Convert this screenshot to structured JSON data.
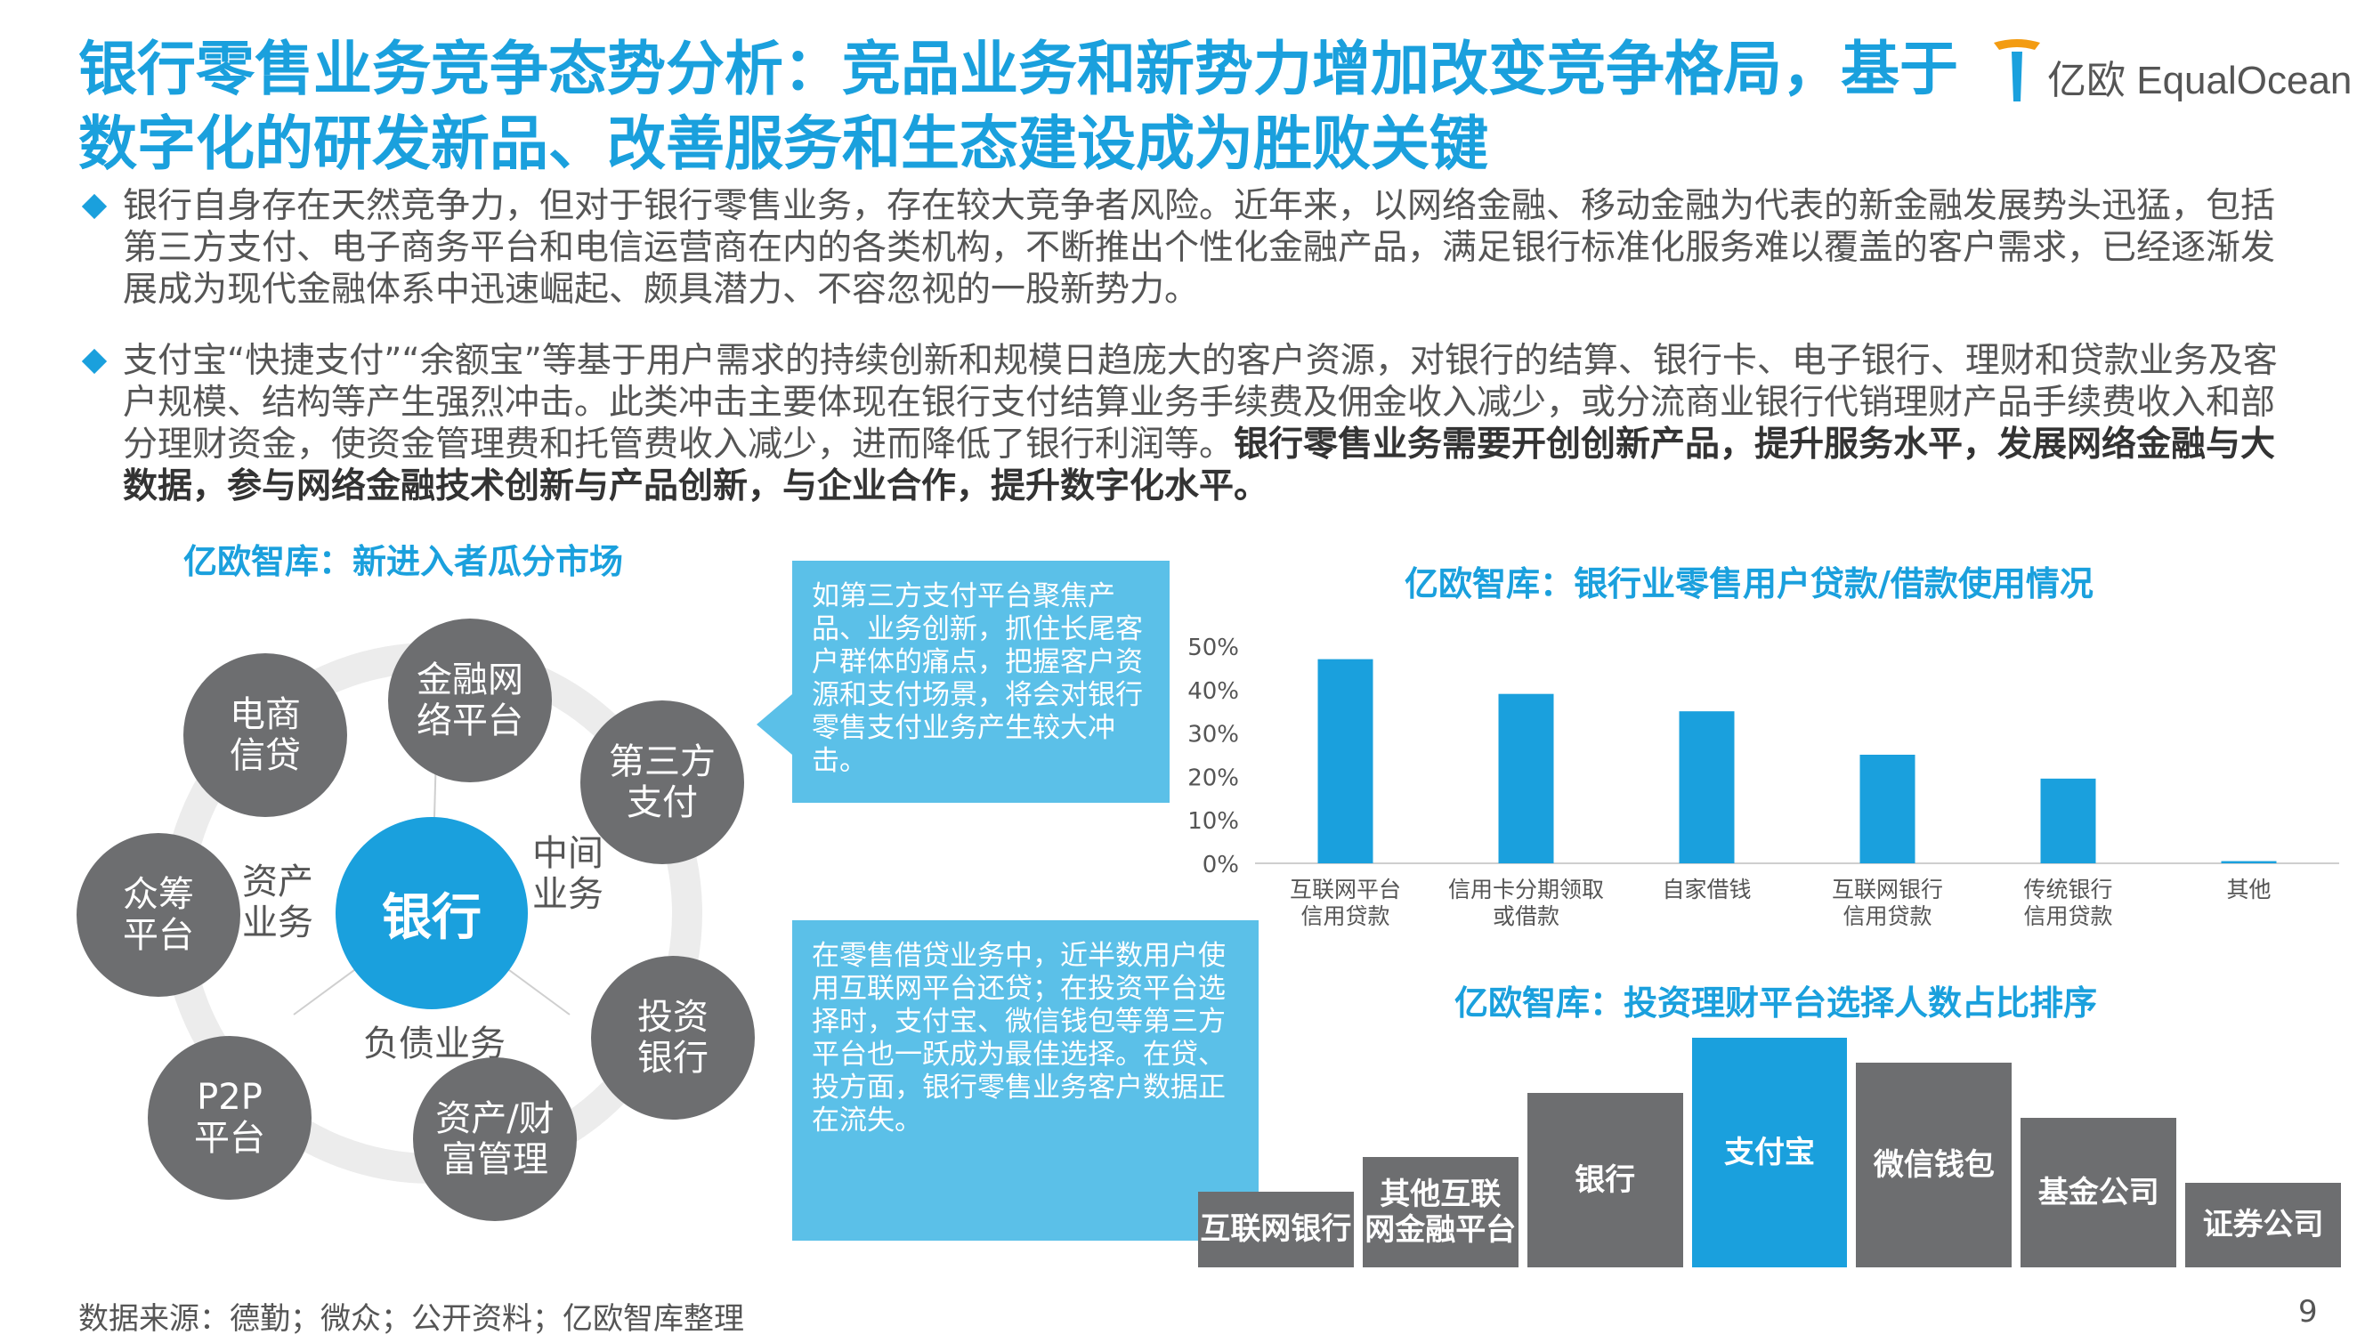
{
  "title": "银行零售业务竞争态势分析：竞品业务和新势力增加改变竞争格局，基于数字化的研发新品、改善服务和生态建设成为胜败关键",
  "logo": {
    "text": "亿欧 EqualOcean",
    "brand_color": "#1aa0dd",
    "icon": "equalocean-logo-icon"
  },
  "bullets": [
    {
      "text": "银行自身存在天然竞争力，但对于银行零售业务，存在较大竞争者风险。近年来，以网络金融、移动金融为代表的新金融发展势头迅猛，包括第三方支付、电子商务平台和电信运营商在内的各类机构，不断推出个性化金融产品，满足银行标准化服务难以覆盖的客户需求，已经逐渐发展成为现代金融体系中迅速崛起、颇具潜力、不容忽视的一股新势力。",
      "bold": ""
    },
    {
      "text": "支付宝“快捷支付”“余额宝”等基于用户需求的持续创新和规模日趋庞大的客户资源，对银行的结算、银行卡、电子银行、理财和贷款业务及客户规模、结构等产生强烈冲击。此类冲击主要体现在银行支付结算业务手续费及佣金收入减少，或分流商业银行代销理财产品手续费收入和部分理财资金，使资金管理费和托管费收入减少，进而降低了银行利润等。",
      "bold": "银行零售业务需要开创创新产品，提升服务水平，发展网络金融与大数据，参与网络金融技术创新与产品创新，与企业合作，提升数字化水平。"
    }
  ],
  "diagram": {
    "title": "亿欧智库：新进入者瓜分市场",
    "center": "银行",
    "segments": {
      "asset": "资产\n业务",
      "middle": "中间\n业务",
      "liability": "负债业务"
    },
    "nodes": [
      "电商\n信贷",
      "金融网\n络平台",
      "第三方\n支付",
      "投资\n银行",
      "资产/财\n富管理",
      "P2P\n平台",
      "众筹\n平台"
    ]
  },
  "callouts": [
    "如第三方支付平台聚焦产品、业务创新，抓住长尾客户群体的痛点，把握客户资源和支付场景，将会对银行零售支付业务产生较大冲击。",
    "在零售借贷业务中，近半数用户使用互联网平台还贷；在投资平台选择时，支付宝、微信钱包等第三方平台也一跃成为最佳选择。在贷、投方面，银行零售业务客户数据正在流失。"
  ],
  "chart_data": [
    {
      "type": "bar",
      "title": "亿欧智库：银行业零售用户贷款/借款使用情况",
      "categories": [
        "互联网平台\n信用贷款",
        "信用卡分期领取\n或借款",
        "自家借钱",
        "互联网银行\n信用贷款",
        "传统银行\n信用贷款",
        "其他"
      ],
      "values": [
        47,
        39,
        35,
        25,
        19.5,
        0.5
      ],
      "yticks": [
        "0%",
        "10%",
        "20%",
        "30%",
        "40%",
        "50%"
      ],
      "ylim": [
        0,
        50
      ],
      "color": "#1aa0dd",
      "grid": false
    },
    {
      "type": "bar",
      "title": "亿欧智库：投资理财平台选择人数占比排序",
      "categories": [
        "互联网银行",
        "其他互联\n网金融平台",
        "银行",
        "支付宝",
        "微信钱包",
        "基金公司",
        "证券公司"
      ],
      "rank_heights": [
        0.33,
        0.48,
        0.76,
        1.0,
        0.89,
        0.65,
        0.37
      ],
      "colors": [
        "#6d6e70",
        "#6d6e70",
        "#6d6e70",
        "#1aa0dd",
        "#6d6e70",
        "#6d6e70",
        "#6d6e70"
      ]
    }
  ],
  "footer": "数据来源：德勤；微众；公开资料；亿欧智库整理",
  "page_number": "9"
}
